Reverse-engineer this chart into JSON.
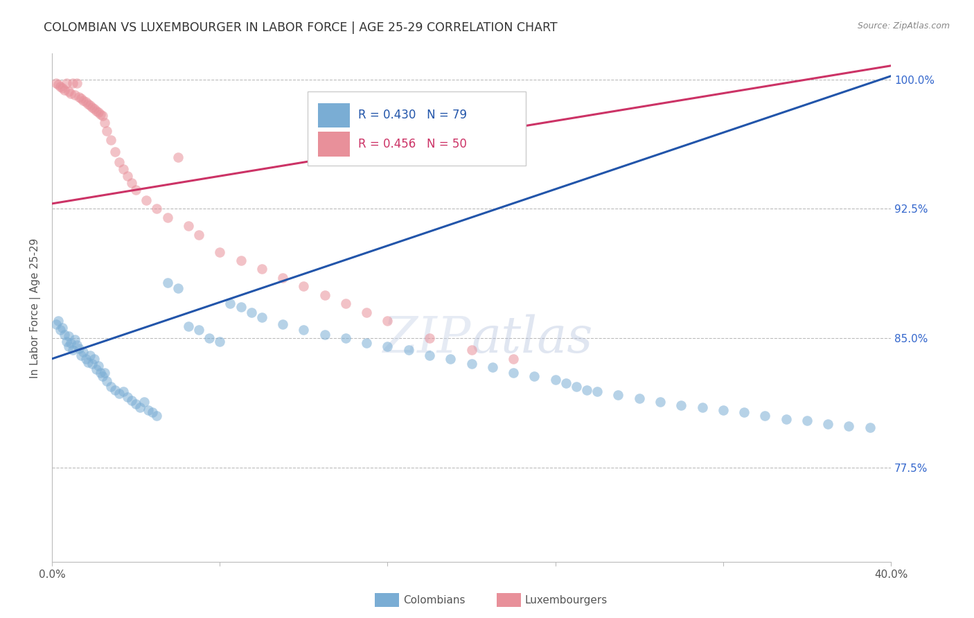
{
  "title": "COLOMBIAN VS LUXEMBOURGER IN LABOR FORCE | AGE 25-29 CORRELATION CHART",
  "source": "Source: ZipAtlas.com",
  "ylabel": "In Labor Force | Age 25-29",
  "xlim": [
    0.0,
    0.4
  ],
  "ylim": [
    0.72,
    1.015
  ],
  "xticks": [
    0.0,
    0.08,
    0.16,
    0.24,
    0.32,
    0.4
  ],
  "xtick_labels": [
    "0.0%",
    "",
    "",
    "",
    "",
    "40.0%"
  ],
  "ytick_labels": [
    "77.5%",
    "85.0%",
    "92.5%",
    "100.0%"
  ],
  "yticks": [
    0.775,
    0.85,
    0.925,
    1.0
  ],
  "blue_color": "#7aadd4",
  "pink_color": "#e8909a",
  "blue_line_color": "#2255aa",
  "pink_line_color": "#cc3366",
  "background_color": "#ffffff",
  "grid_color": "#bbbbbb",
  "R_blue": 0.43,
  "N_blue": 79,
  "R_pink": 0.456,
  "N_pink": 50,
  "blue_intercept": 0.838,
  "blue_slope": 0.41,
  "pink_intercept": 0.928,
  "pink_slope": 0.2,
  "colombians_x": [
    0.002,
    0.003,
    0.004,
    0.005,
    0.006,
    0.007,
    0.008,
    0.008,
    0.009,
    0.01,
    0.011,
    0.012,
    0.013,
    0.014,
    0.015,
    0.016,
    0.017,
    0.018,
    0.019,
    0.02,
    0.021,
    0.022,
    0.023,
    0.024,
    0.025,
    0.026,
    0.028,
    0.03,
    0.032,
    0.034,
    0.036,
    0.038,
    0.04,
    0.042,
    0.044,
    0.046,
    0.048,
    0.05,
    0.055,
    0.06,
    0.065,
    0.07,
    0.075,
    0.08,
    0.085,
    0.09,
    0.095,
    0.1,
    0.11,
    0.12,
    0.13,
    0.14,
    0.15,
    0.16,
    0.17,
    0.18,
    0.19,
    0.2,
    0.21,
    0.22,
    0.23,
    0.24,
    0.245,
    0.25,
    0.255,
    0.26,
    0.27,
    0.28,
    0.29,
    0.3,
    0.31,
    0.32,
    0.33,
    0.34,
    0.35,
    0.36,
    0.37,
    0.38,
    0.39
  ],
  "colombians_y": [
    0.858,
    0.86,
    0.855,
    0.856,
    0.852,
    0.848,
    0.851,
    0.845,
    0.847,
    0.843,
    0.849,
    0.846,
    0.844,
    0.84,
    0.842,
    0.838,
    0.836,
    0.84,
    0.835,
    0.838,
    0.832,
    0.834,
    0.83,
    0.828,
    0.83,
    0.825,
    0.822,
    0.82,
    0.818,
    0.819,
    0.816,
    0.814,
    0.812,
    0.81,
    0.813,
    0.808,
    0.807,
    0.805,
    0.882,
    0.879,
    0.857,
    0.855,
    0.85,
    0.848,
    0.87,
    0.868,
    0.865,
    0.862,
    0.858,
    0.855,
    0.852,
    0.85,
    0.847,
    0.845,
    0.843,
    0.84,
    0.838,
    0.835,
    0.833,
    0.83,
    0.828,
    0.826,
    0.824,
    0.822,
    0.82,
    0.819,
    0.817,
    0.815,
    0.813,
    0.811,
    0.81,
    0.808,
    0.807,
    0.805,
    0.803,
    0.802,
    0.8,
    0.799,
    0.798
  ],
  "luxembourgers_x": [
    0.002,
    0.003,
    0.004,
    0.005,
    0.006,
    0.007,
    0.008,
    0.009,
    0.01,
    0.011,
    0.012,
    0.013,
    0.014,
    0.015,
    0.016,
    0.017,
    0.018,
    0.019,
    0.02,
    0.021,
    0.022,
    0.023,
    0.024,
    0.025,
    0.026,
    0.028,
    0.03,
    0.032,
    0.034,
    0.036,
    0.038,
    0.04,
    0.045,
    0.05,
    0.055,
    0.06,
    0.065,
    0.07,
    0.08,
    0.09,
    0.1,
    0.11,
    0.12,
    0.13,
    0.14,
    0.15,
    0.16,
    0.18,
    0.2,
    0.22
  ],
  "luxembourgers_y": [
    0.998,
    0.997,
    0.996,
    0.995,
    0.994,
    0.998,
    0.993,
    0.992,
    0.998,
    0.991,
    0.998,
    0.99,
    0.989,
    0.988,
    0.987,
    0.986,
    0.985,
    0.984,
    0.983,
    0.982,
    0.981,
    0.98,
    0.979,
    0.975,
    0.97,
    0.965,
    0.958,
    0.952,
    0.948,
    0.944,
    0.94,
    0.936,
    0.93,
    0.925,
    0.92,
    0.955,
    0.915,
    0.91,
    0.9,
    0.895,
    0.89,
    0.885,
    0.88,
    0.875,
    0.87,
    0.865,
    0.86,
    0.85,
    0.843,
    0.838
  ]
}
